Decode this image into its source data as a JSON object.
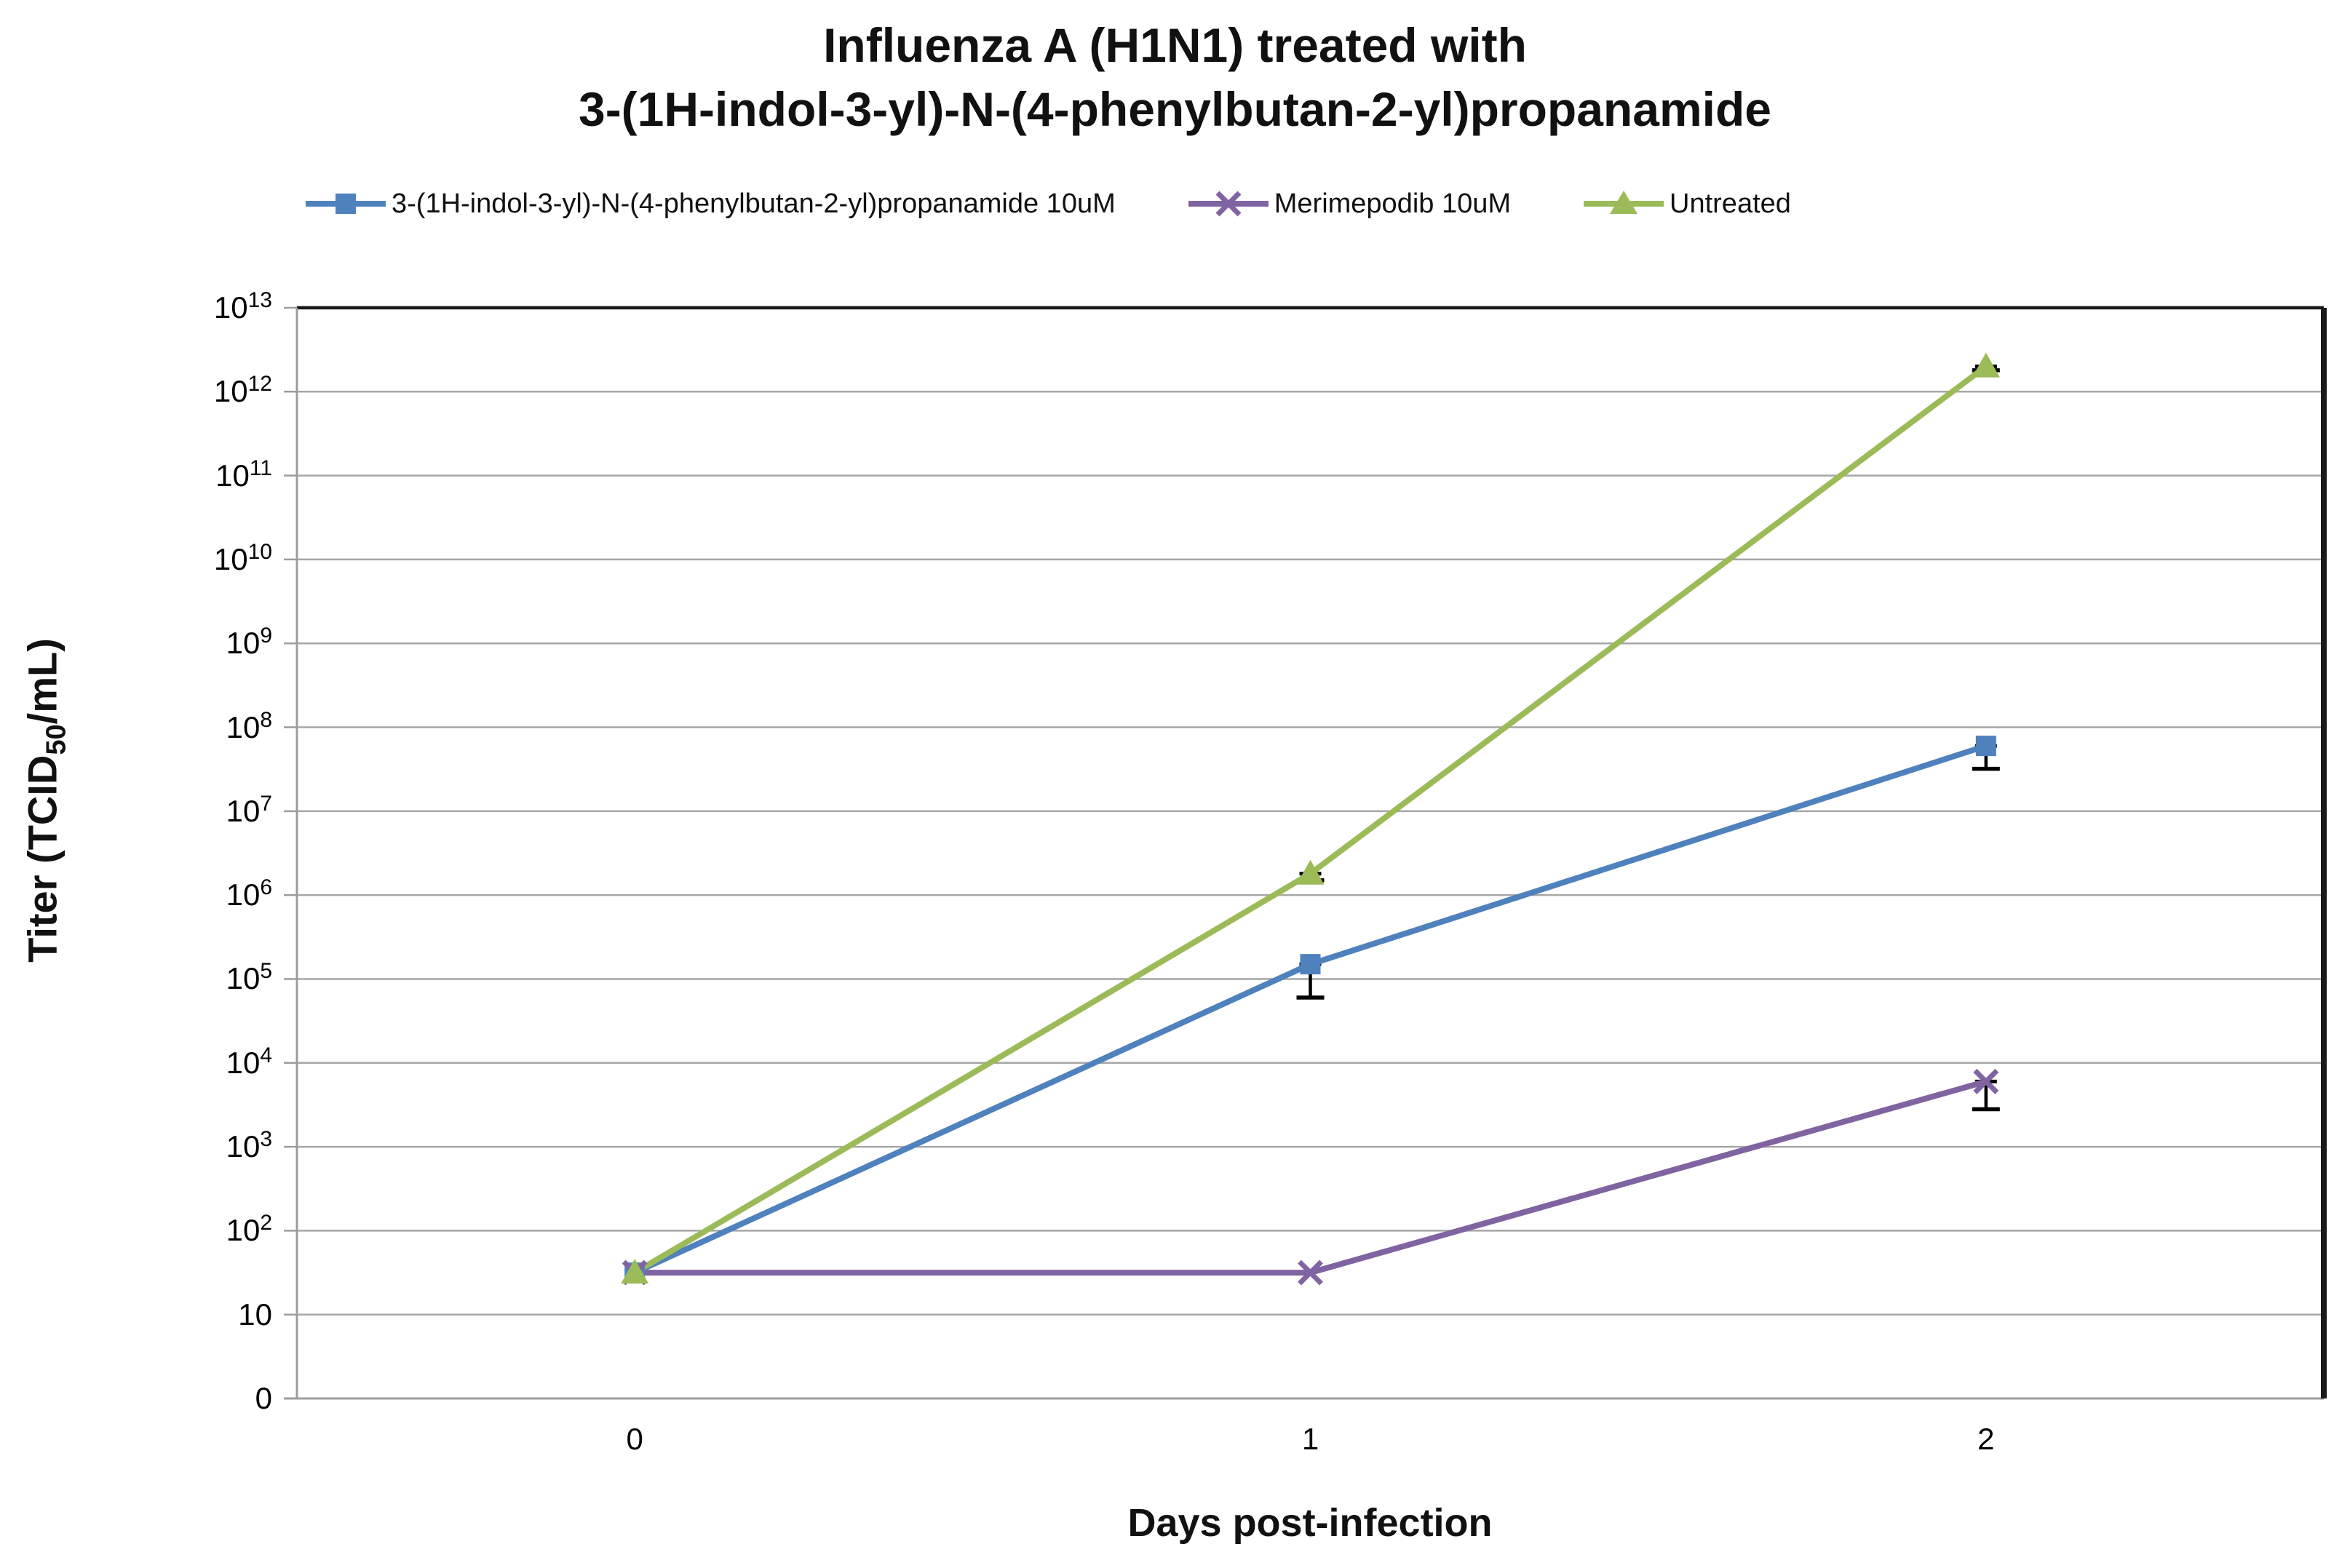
{
  "title": {
    "line1": "Influenza A (H1N1) treated with",
    "line2": "3-(1H-indol-3-yl)-N-(4-phenylbutan-2-yl)propanamide"
  },
  "legend": {
    "items": [
      {
        "label": "3-(1H-indol-3-yl)-N-(4-phenylbutan-2-yl)propanamide 10uM",
        "color": "#4F81BD",
        "marker": "square"
      },
      {
        "label": "Merimepodib 10uM",
        "color": "#8064A2",
        "marker": "x"
      },
      {
        "label": "Untreated",
        "color": "#9BBB59",
        "marker": "triangle"
      }
    ]
  },
  "axes": {
    "x_title": "Days post-infection",
    "y_title_pre": "Titer  (TCID",
    "y_title_sub": "50",
    "y_title_post": "/mL)",
    "x_tick_labels": [
      "0",
      "1",
      "2"
    ],
    "y_tick_labels": [
      "0",
      "10",
      "10^2",
      "10^3",
      "10^4",
      "10^5",
      "10^6",
      "10^7",
      "10^8",
      "10^9",
      "10^10",
      "10^11",
      "10^12",
      "10^13"
    ]
  },
  "colors": {
    "blue_series": "#4F81BD",
    "purple_series": "#8064A2",
    "green_series": "#9BBB59",
    "gridline": "#A6A6A6",
    "axis_line": "#9C9C9C",
    "dark_border": "#1a1a1a",
    "error_bar": "#000000"
  },
  "chart_data": {
    "type": "line",
    "title": "Influenza A (H1N1) treated with 3-(1H-indol-3-yl)-N-(4-phenylbutan-2-yl)propanamide",
    "xlabel": "Days post-infection",
    "ylabel": "Titer (TCID50/mL)",
    "yscale": "log",
    "ylim_exponents": [
      0,
      13
    ],
    "grid": true,
    "legend_position": "top",
    "x": [
      0,
      1,
      2
    ],
    "series": [
      {
        "name": "3-(1H-indol-3-yl)-N-(4-phenylbutan-2-yl)propanamide 10uM",
        "marker": "square",
        "color": "#4F81BD",
        "values": [
          31.6,
          150000,
          60000000
        ],
        "error_minus_to": [
          null,
          60000,
          32000000
        ]
      },
      {
        "name": "Merimepodib 10uM",
        "marker": "x",
        "color": "#8064A2",
        "values": [
          31.6,
          31.6,
          6000
        ],
        "error_minus_to": [
          null,
          null,
          2800
        ]
      },
      {
        "name": "Untreated",
        "marker": "triangle",
        "color": "#9BBB59",
        "values": [
          31.6,
          1800000,
          2000000000000
        ],
        "error_minus_to": [
          null,
          1500000,
          1800000000000
        ]
      }
    ]
  }
}
